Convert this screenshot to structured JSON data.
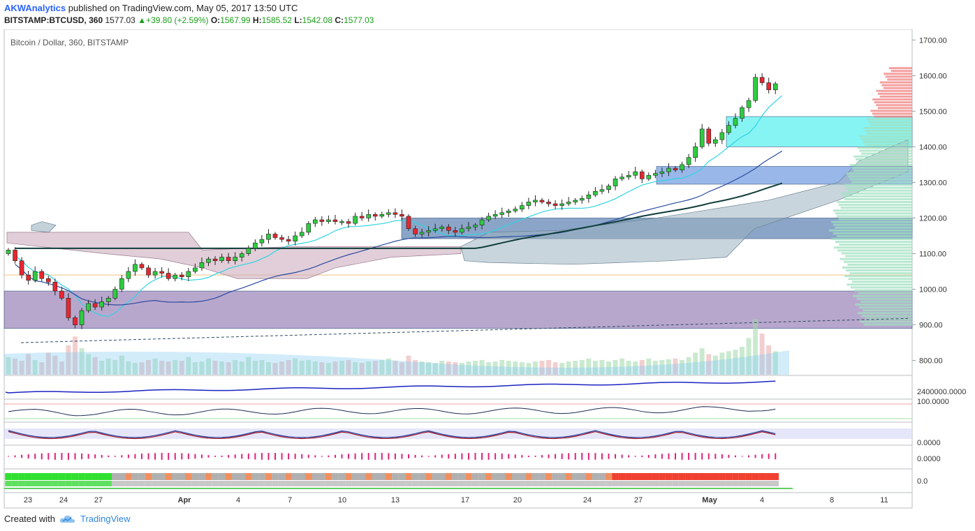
{
  "header": {
    "author": "AKWAnalytics",
    "published_text": "published on TradingView.com, May 05, 2017 13:50 UTC",
    "symbol": "BITSTAMP:BTCUSD, 360",
    "last": "1577.03",
    "change": "+39.80 (+2.59%)",
    "open_label": "O:",
    "open": "1567.99",
    "high_label": "H:",
    "high": "1585.52",
    "low_label": "L:",
    "low": "1542.08",
    "close_label": "C:",
    "close": "1577.03"
  },
  "footer": {
    "created_with": "Created with",
    "brand": "TradingView"
  },
  "chart_data": {
    "type": "candlestick",
    "title": "Bitcoin / Dollar, 360, BITSTAMP",
    "ylim": [
      760,
      1730
    ],
    "y_ticks": [
      "1700.00",
      "1600.00",
      "1500.00",
      "1400.00",
      "1300.00",
      "1200.00",
      "1100.00",
      "1000.00",
      "900.00",
      "800.00"
    ],
    "x_ticks": [
      "23",
      "24",
      "27",
      "Apr",
      "4",
      "7",
      "10",
      "13",
      "17",
      "20",
      "24",
      "27",
      "May",
      "4",
      "8",
      "11"
    ],
    "closes": [
      1110,
      1080,
      1040,
      1025,
      1050,
      1030,
      1020,
      995,
      975,
      920,
      900,
      940,
      960,
      950,
      965,
      975,
      1000,
      1030,
      1050,
      1070,
      1060,
      1040,
      1050,
      1045,
      1030,
      1040,
      1035,
      1050,
      1060,
      1075,
      1085,
      1080,
      1090,
      1080,
      1090,
      1100,
      1115,
      1130,
      1140,
      1155,
      1145,
      1140,
      1135,
      1150,
      1160,
      1185,
      1195,
      1190,
      1195,
      1190,
      1190,
      1185,
      1205,
      1200,
      1210,
      1205,
      1210,
      1215,
      1210,
      1205,
      1170,
      1155,
      1160,
      1165,
      1170,
      1175,
      1165,
      1160,
      1170,
      1175,
      1180,
      1195,
      1205,
      1210,
      1215,
      1220,
      1225,
      1235,
      1245,
      1250,
      1245,
      1240,
      1235,
      1240,
      1245,
      1250,
      1255,
      1265,
      1275,
      1280,
      1290,
      1310,
      1315,
      1320,
      1330,
      1310,
      1320,
      1325,
      1330,
      1340,
      1335,
      1350,
      1370,
      1400,
      1450,
      1410,
      1420,
      1440,
      1460,
      1480,
      1510,
      1530,
      1595,
      1580,
      1560,
      1577.03
    ],
    "volume": [
      120,
      110,
      95,
      140,
      100,
      85,
      150,
      130,
      90,
      200,
      260,
      180,
      140,
      120,
      95,
      110,
      100,
      130,
      90,
      80,
      85,
      100,
      110,
      95,
      90,
      100,
      95,
      120,
      85,
      90,
      110,
      95,
      90,
      85,
      100,
      90,
      120,
      95,
      100,
      85,
      80,
      90,
      100,
      110,
      95,
      100,
      90,
      85,
      80,
      90,
      95,
      100,
      85,
      80,
      90,
      95,
      100,
      110,
      95,
      85,
      130,
      100,
      90,
      85,
      80,
      95,
      90,
      85,
      80,
      90,
      95,
      100,
      85,
      90,
      100,
      95,
      90,
      85,
      80,
      90,
      95,
      100,
      85,
      80,
      90,
      95,
      100,
      110,
      95,
      100,
      90,
      100,
      110,
      95,
      90,
      100,
      110,
      95,
      100,
      105,
      110,
      100,
      120,
      150,
      180,
      140,
      130,
      150,
      160,
      170,
      190,
      250,
      380,
      280,
      200,
      160
    ],
    "series": [
      {
        "name": "",
        "color": "#2fd3e3",
        "role": "fast-ma"
      },
      {
        "name": "",
        "color": "#2a4aa0",
        "role": "slow-ma"
      },
      {
        "name": "",
        "color": "#0f3d3a",
        "role": "long-ma"
      }
    ],
    "zones": [
      {
        "from": 1400,
        "to": 1485,
        "color": "#5ff0f0"
      },
      {
        "from": 1295,
        "to": 1345,
        "color": "#6e9ae0"
      },
      {
        "from": 1142,
        "to": 1200,
        "color": "#5a7fb0"
      },
      {
        "from": 890,
        "to": 995,
        "color": "#9a82b8"
      }
    ],
    "sub_panels": [
      {
        "label": "2400000.0000"
      },
      {
        "label": "100.0000"
      },
      {
        "label": "0.0000"
      },
      {
        "label": "0.0000"
      },
      {
        "label": "0.0"
      }
    ],
    "colors": {
      "up": "#2ecc40",
      "down": "#e8262f",
      "axis": "#9aa0a6"
    }
  }
}
